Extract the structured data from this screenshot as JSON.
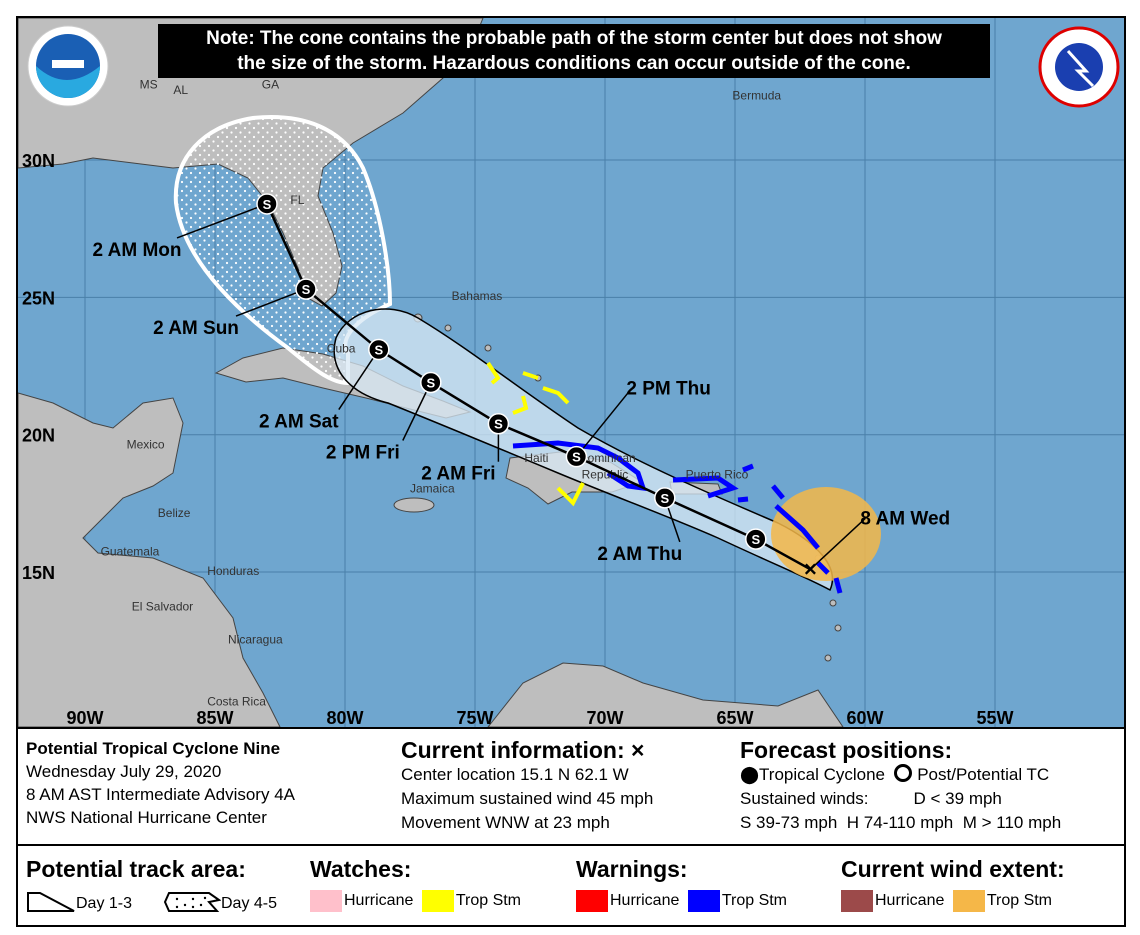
{
  "note": {
    "line1": "Note: The cone contains the probable path of the storm center but does not show",
    "line2": "the size of the storm. Hazardous conditions can occur outside of the cone."
  },
  "logos": {
    "left": "NOAA",
    "right": "NATIONAL WEATHER SERVICE"
  },
  "colors": {
    "ocean": "#6fa6cf",
    "land": "#bebebe",
    "cone13": "#d8e8f4",
    "watch_hurricane": "#ffc0cb",
    "watch_ts": "#ffff00",
    "warn_hurricane": "#ff0000",
    "warn_ts": "#0000ff",
    "wind_hurricane": "#9c4a4a",
    "wind_ts": "#f5b748"
  },
  "map": {
    "lat_labels": [
      {
        "lat": 30,
        "text": "30N"
      },
      {
        "lat": 25,
        "text": "25N"
      },
      {
        "lat": 20,
        "text": "20N"
      },
      {
        "lat": 15,
        "text": "15N"
      }
    ],
    "lon_labels": [
      {
        "lon": 90,
        "text": "90W"
      },
      {
        "lon": 85,
        "text": "85W"
      },
      {
        "lon": 80,
        "text": "80W"
      },
      {
        "lon": 75,
        "text": "75W"
      },
      {
        "lon": 70,
        "text": "70W"
      },
      {
        "lon": 65,
        "text": "65W"
      },
      {
        "lon": 60,
        "text": "60W"
      },
      {
        "lon": 55,
        "text": "55W"
      }
    ],
    "places": [
      {
        "t": "MS",
        "lat": 32.6,
        "lon": 87.9
      },
      {
        "t": "AL",
        "lat": 32.4,
        "lon": 86.6
      },
      {
        "t": "GA",
        "lat": 32.6,
        "lon": 83.2
      },
      {
        "t": "FL",
        "lat": 28.4,
        "lon": 82.1
      },
      {
        "t": "Bermuda",
        "lat": 32.2,
        "lon": 65.1
      },
      {
        "t": "Bahamas",
        "lat": 24.9,
        "lon": 75.9
      },
      {
        "t": "Cuba",
        "lat": 23.0,
        "lon": 80.7
      },
      {
        "t": "Haiti",
        "lat": 19.0,
        "lon": 73.1
      },
      {
        "t": "Dominican",
        "lat": 19.0,
        "lon": 71.0
      },
      {
        "t": "Republic",
        "lat": 18.4,
        "lon": 70.9
      },
      {
        "t": "Puerto Rico",
        "lat": 18.4,
        "lon": 66.9
      },
      {
        "t": "Jamaica",
        "lat": 17.9,
        "lon": 77.5
      },
      {
        "t": "Mexico",
        "lat": 19.5,
        "lon": 88.4
      },
      {
        "t": "Belize",
        "lat": 17.0,
        "lon": 87.2
      },
      {
        "t": "Guatemala",
        "lat": 15.6,
        "lon": 89.4
      },
      {
        "t": "Honduras",
        "lat": 14.9,
        "lon": 85.3
      },
      {
        "t": "El Salvador",
        "lat": 13.6,
        "lon": 88.2
      },
      {
        "t": "Nicaragua",
        "lat": 12.4,
        "lon": 84.5
      },
      {
        "t": "Costa Rica",
        "lat": 10.0,
        "lon": 85.3
      }
    ],
    "current": {
      "lat": 15.1,
      "lon": 62.1
    },
    "track": [
      {
        "label": "8 AM Wed",
        "type": "current",
        "lat": 15.1,
        "lon": 62.1
      },
      {
        "label": "",
        "type": "S",
        "lat": 16.2,
        "lon": 64.2
      },
      {
        "label": "2 AM Thu",
        "type": "S",
        "lat": 17.7,
        "lon": 67.7
      },
      {
        "label": "2 PM Thu",
        "type": "S",
        "lat": 19.2,
        "lon": 71.1
      },
      {
        "label": "2 AM Fri",
        "type": "S",
        "lat": 20.4,
        "lon": 74.1
      },
      {
        "label": "2 PM Fri",
        "type": "S",
        "lat": 21.9,
        "lon": 76.7
      },
      {
        "label": "2 AM Sat",
        "type": "S",
        "lat": 23.1,
        "lon": 78.7
      },
      {
        "label": "2 AM Sun",
        "type": "S",
        "lat": 25.3,
        "lon": 81.5
      },
      {
        "label": "2 AM Mon",
        "type": "S",
        "lat": 28.4,
        "lon": 83.0
      }
    ]
  },
  "info": {
    "storm": "Potential Tropical Cyclone Nine",
    "date": "Wednesday July 29, 2020",
    "advisory": "8 AM AST Intermediate Advisory 4A",
    "center": "NWS National Hurricane Center",
    "current_title": "Current information: ×",
    "location": "Center location 15.1 N 62.1 W",
    "wind": "Maximum sustained wind 45 mph",
    "movement": "Movement WNW at 23 mph",
    "forecast_title": "Forecast positions:",
    "tc": "Tropical Cyclone",
    "ptc": "Post/Potential TC",
    "sustained": "Sustained winds:",
    "d": "D < 39 mph",
    "s": "S 39-73 mph",
    "hcat": "H 74-110 mph",
    "m": "M > 110 mph"
  },
  "legend": {
    "track_title": "Potential track area:",
    "day13": "Day 1-3",
    "day45": "Day 4-5",
    "watches_title": "Watches:",
    "warnings_title": "Warnings:",
    "wind_title": "Current wind extent:",
    "hurricane": "Hurricane",
    "trop_stm": "Trop Stm"
  }
}
